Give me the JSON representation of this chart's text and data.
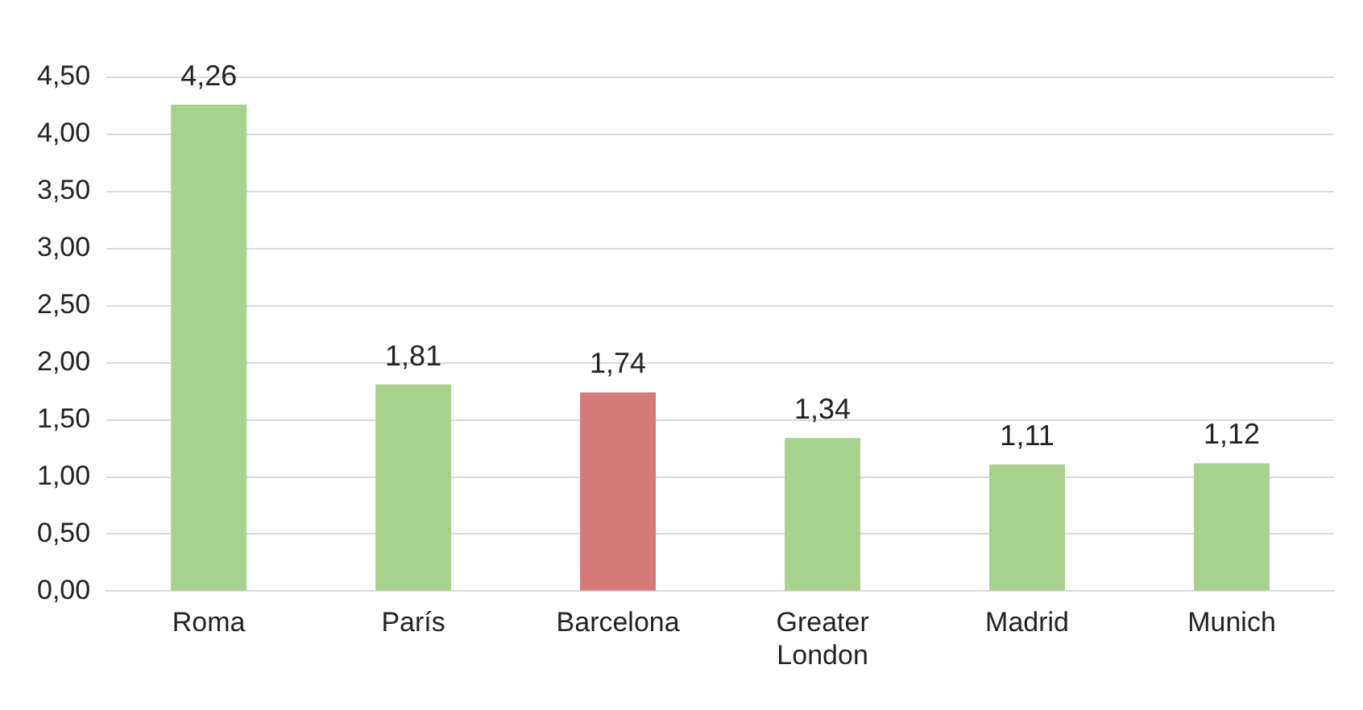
{
  "chart_data": {
    "type": "bar",
    "categories": [
      "Roma",
      "París",
      "Barcelona",
      "Greater London",
      "Madrid",
      "Munich"
    ],
    "values": [
      4.26,
      1.81,
      1.74,
      1.34,
      1.11,
      1.12
    ],
    "colors": [
      "#a9d18e",
      "#a9d18e",
      "#d47a7a",
      "#a9d18e",
      "#a9d18e",
      "#a9d18e"
    ],
    "value_labels": [
      "4,26",
      "1,81",
      "1,74",
      "1,34",
      "1,11",
      "1,12"
    ],
    "ylim": [
      0,
      4.5
    ],
    "yticks": [
      {
        "value": 0,
        "label": "0,00"
      },
      {
        "value": 0.5,
        "label": "0,50"
      },
      {
        "value": 1,
        "label": "1,00"
      },
      {
        "value": 1.5,
        "label": "1,50"
      },
      {
        "value": 2,
        "label": "2,00"
      },
      {
        "value": 2.5,
        "label": "2,50"
      },
      {
        "value": 3,
        "label": "3,00"
      },
      {
        "value": 3.5,
        "label": "3,50"
      },
      {
        "value": 4,
        "label": "4,00"
      },
      {
        "value": 4.5,
        "label": "4,50"
      }
    ],
    "grid": "y",
    "legend": false
  }
}
